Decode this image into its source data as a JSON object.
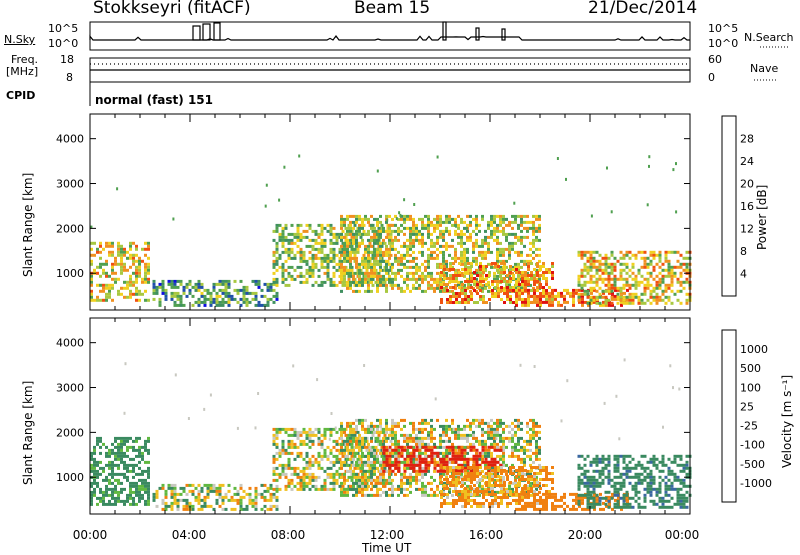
{
  "header": {
    "station": "Stokkseyri (fitACF)",
    "beam": "Beam 15",
    "date": "21/Dec/2014"
  },
  "status_panels": {
    "nsky_label": "N.Sky",
    "nsky_ticks": [
      "10^5",
      "10^0"
    ],
    "nsearch_label": "N.Search",
    "freq_label_line1": "Freq.",
    "freq_label_line2": "[MHz]",
    "freq_ticks": [
      "18",
      "8"
    ],
    "nave_ticks": [
      "60",
      "0"
    ],
    "nave_label": "Nave",
    "cpid_label": "CPID",
    "cpid_value": "normal (fast) 151"
  },
  "chart_data": [
    {
      "type": "heatmap",
      "panel": "power",
      "ylabel": "Slant Range [km]",
      "ylim": [
        180,
        4550
      ],
      "yticks": [
        "4000",
        "3000",
        "2000",
        "1000"
      ],
      "xlim": [
        0,
        24
      ],
      "colorbar_label": "Power [dB]",
      "colorbar_ticks": [
        "28",
        "24",
        "20",
        "16",
        "12",
        "8",
        "4"
      ],
      "colors": [
        "#1010e0",
        "#2050a8",
        "#409060",
        "#50a050",
        "#a8c840",
        "#f0d020",
        "#f09020",
        "#f05010",
        "#e01010"
      ],
      "regions": [
        {
          "t": [
            0.0,
            2.3
          ],
          "r": [
            400,
            1700
          ],
          "v": 20
        },
        {
          "t": [
            2.5,
            7.5
          ],
          "r": [
            300,
            850
          ],
          "v": 12
        },
        {
          "t": [
            7.3,
            12.0
          ],
          "r": [
            700,
            2100
          ],
          "v": 16
        },
        {
          "t": [
            10.0,
            18.0
          ],
          "r": [
            600,
            2300
          ],
          "v": 18
        },
        {
          "t": [
            14.0,
            18.5
          ],
          "r": [
            350,
            1250
          ],
          "v": 24
        },
        {
          "t": [
            17.0,
            21.5
          ],
          "r": [
            250,
            650
          ],
          "v": 26
        },
        {
          "t": [
            19.5,
            24.0
          ],
          "r": [
            300,
            1500
          ],
          "v": 20
        }
      ]
    },
    {
      "type": "heatmap",
      "panel": "velocity",
      "ylabel": "Slant Range [km]",
      "ylim": [
        180,
        4550
      ],
      "yticks": [
        "4000",
        "3000",
        "2000",
        "1000"
      ],
      "xlim": [
        0,
        24
      ],
      "colorbar_label": "Velocity [m s⁻¹]",
      "colorbar_ticks": [
        "1000",
        "500",
        "100",
        "25",
        "-25",
        "-100",
        "-500",
        "-1000"
      ],
      "colors": [
        "#2040b8",
        "#3a68a0",
        "#3a8a60",
        "#60b840",
        "#c8c8c0",
        "#f0c020",
        "#f08010",
        "#e02010"
      ],
      "regions": [
        {
          "t": [
            0.0,
            2.3
          ],
          "r": [
            400,
            1900
          ],
          "v": 200
        },
        {
          "t": [
            2.5,
            7.5
          ],
          "r": [
            300,
            850
          ],
          "v": 0
        },
        {
          "t": [
            7.3,
            12.0
          ],
          "r": [
            700,
            2100
          ],
          "v": 0
        },
        {
          "t": [
            10.0,
            18.0
          ],
          "r": [
            600,
            2300
          ],
          "v": 0
        },
        {
          "t": [
            11.7,
            16.5
          ],
          "r": [
            1100,
            1700
          ],
          "v": -600
        },
        {
          "t": [
            14.0,
            18.5
          ],
          "r": [
            350,
            1250
          ],
          "v": -150
        },
        {
          "t": [
            17.0,
            21.5
          ],
          "r": [
            250,
            650
          ],
          "v": -300
        },
        {
          "t": [
            19.5,
            24.0
          ],
          "r": [
            300,
            1500
          ],
          "v": 400
        }
      ]
    }
  ],
  "x_axis": {
    "ticks": [
      "00:00",
      "04:00",
      "08:00",
      "12:00",
      "16:00",
      "20:00",
      "00:00"
    ],
    "label": "Time UT"
  }
}
